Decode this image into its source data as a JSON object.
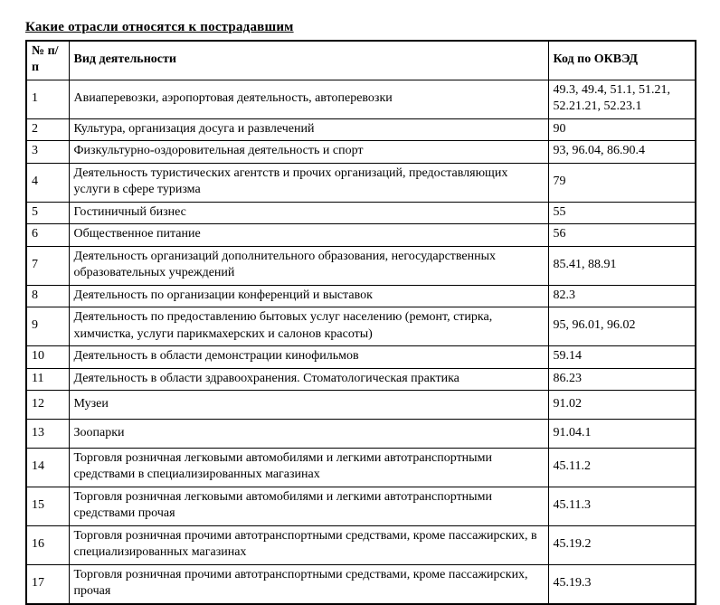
{
  "page": {
    "title": "Какие отрасли относятся к пострадавшим"
  },
  "table": {
    "headers": {
      "num": "№ п/п",
      "activity": "Вид деятельности",
      "code": "Код по ОКВЭД"
    },
    "rows": [
      {
        "num": "1",
        "activity": "Авиаперевозки, аэропортовая деятельность, автоперевозки",
        "code": "49.3, 49.4, 51.1, 51.21, 52.21.21, 52.23.1",
        "tall": false
      },
      {
        "num": "2",
        "activity": "Культура, организация досуга и развлечений",
        "code": "90",
        "tall": false
      },
      {
        "num": "3",
        "activity": "Физкультурно-оздоровительная деятельность и спорт",
        "code": "93, 96.04, 86.90.4",
        "tall": false
      },
      {
        "num": "4",
        "activity": "Деятельность туристических агентств и прочих организаций, предоставляющих услуги в сфере туризма",
        "code": "79",
        "tall": false
      },
      {
        "num": "5",
        "activity": "Гостиничный бизнес",
        "code": "55",
        "tall": false
      },
      {
        "num": "6",
        "activity": "Общественное питание",
        "code": "56",
        "tall": false
      },
      {
        "num": "7",
        "activity": "Деятельность организаций дополнительного образования, негосударственных образовательных учреждений",
        "code": "85.41, 88.91",
        "tall": false
      },
      {
        "num": "8",
        "activity": "Деятельность по организации конференций и выставок",
        "code": "82.3",
        "tall": false
      },
      {
        "num": "9",
        "activity": "Деятельность по предоставлению бытовых услуг населению (ремонт, стирка, химчистка, услуги парикмахерских и салонов красоты)",
        "code": "95, 96.01, 96.02",
        "tall": false
      },
      {
        "num": "10",
        "activity": "Деятельность в области демонстрации кинофильмов",
        "code": "59.14",
        "tall": false
      },
      {
        "num": "11",
        "activity": "Деятельность в области здравоохранения. Стоматологическая практика",
        "code": "86.23",
        "tall": false
      },
      {
        "num": "12",
        "activity": "Музеи",
        "code": "91.02",
        "tall": true
      },
      {
        "num": "13",
        "activity": "Зоопарки",
        "code": "91.04.1",
        "tall": true
      },
      {
        "num": "14",
        "activity": "Торговля розничная легковыми автомобилями и легкими автотранспортными средствами в специализированных магазинах",
        "code": "45.11.2",
        "tall": false
      },
      {
        "num": "15",
        "activity": "Торговля розничная легковыми автомобилями и легкими автотранспортными средствами прочая",
        "code": "45.11.3",
        "tall": false
      },
      {
        "num": "16",
        "activity": "Торговля розничная прочими автотранспортными средствами, кроме пассажирских, в специализированных магазинах",
        "code": "45.19.2",
        "tall": false
      },
      {
        "num": "17",
        "activity": "Торговля розничная прочими автотранспортными средствами, кроме пассажирских, прочая",
        "code": "45.19.3",
        "tall": false
      }
    ]
  }
}
